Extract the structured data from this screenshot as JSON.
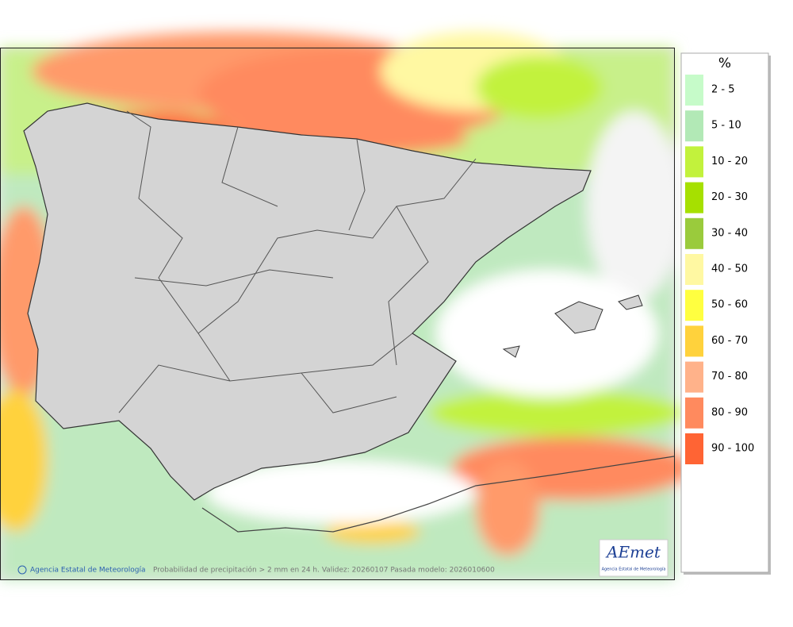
{
  "legend": {
    "unit": "%",
    "items": [
      {
        "label": "2 - 5",
        "color": "#c6fbc9"
      },
      {
        "label": "5 - 10",
        "color": "#b2e9b6"
      },
      {
        "label": "10 - 20",
        "color": "#c2f23c"
      },
      {
        "label": "20 - 30",
        "color": "#a6e000"
      },
      {
        "label": "30 - 40",
        "color": "#9acb3c"
      },
      {
        "label": "40 - 50",
        "color": "#fff8a2"
      },
      {
        "label": "50 - 60",
        "color": "#ffff40"
      },
      {
        "label": "60 - 70",
        "color": "#ffd23c"
      },
      {
        "label": "70 - 80",
        "color": "#ffb28a"
      },
      {
        "label": "80 - 90",
        "color": "#ff8a5e"
      },
      {
        "label": "90 - 100",
        "color": "#ff6434"
      }
    ]
  },
  "footer": {
    "credit": "Agencia Estatal de Meteorología",
    "caption": "Probabilidad de precipitación > 2 mm en 24 h. Validez: 20260107 Pasada modelo: 2026010600"
  },
  "logo": {
    "name": "AEmet",
    "subtitle": "Agencia Estatal de Meteorología"
  }
}
